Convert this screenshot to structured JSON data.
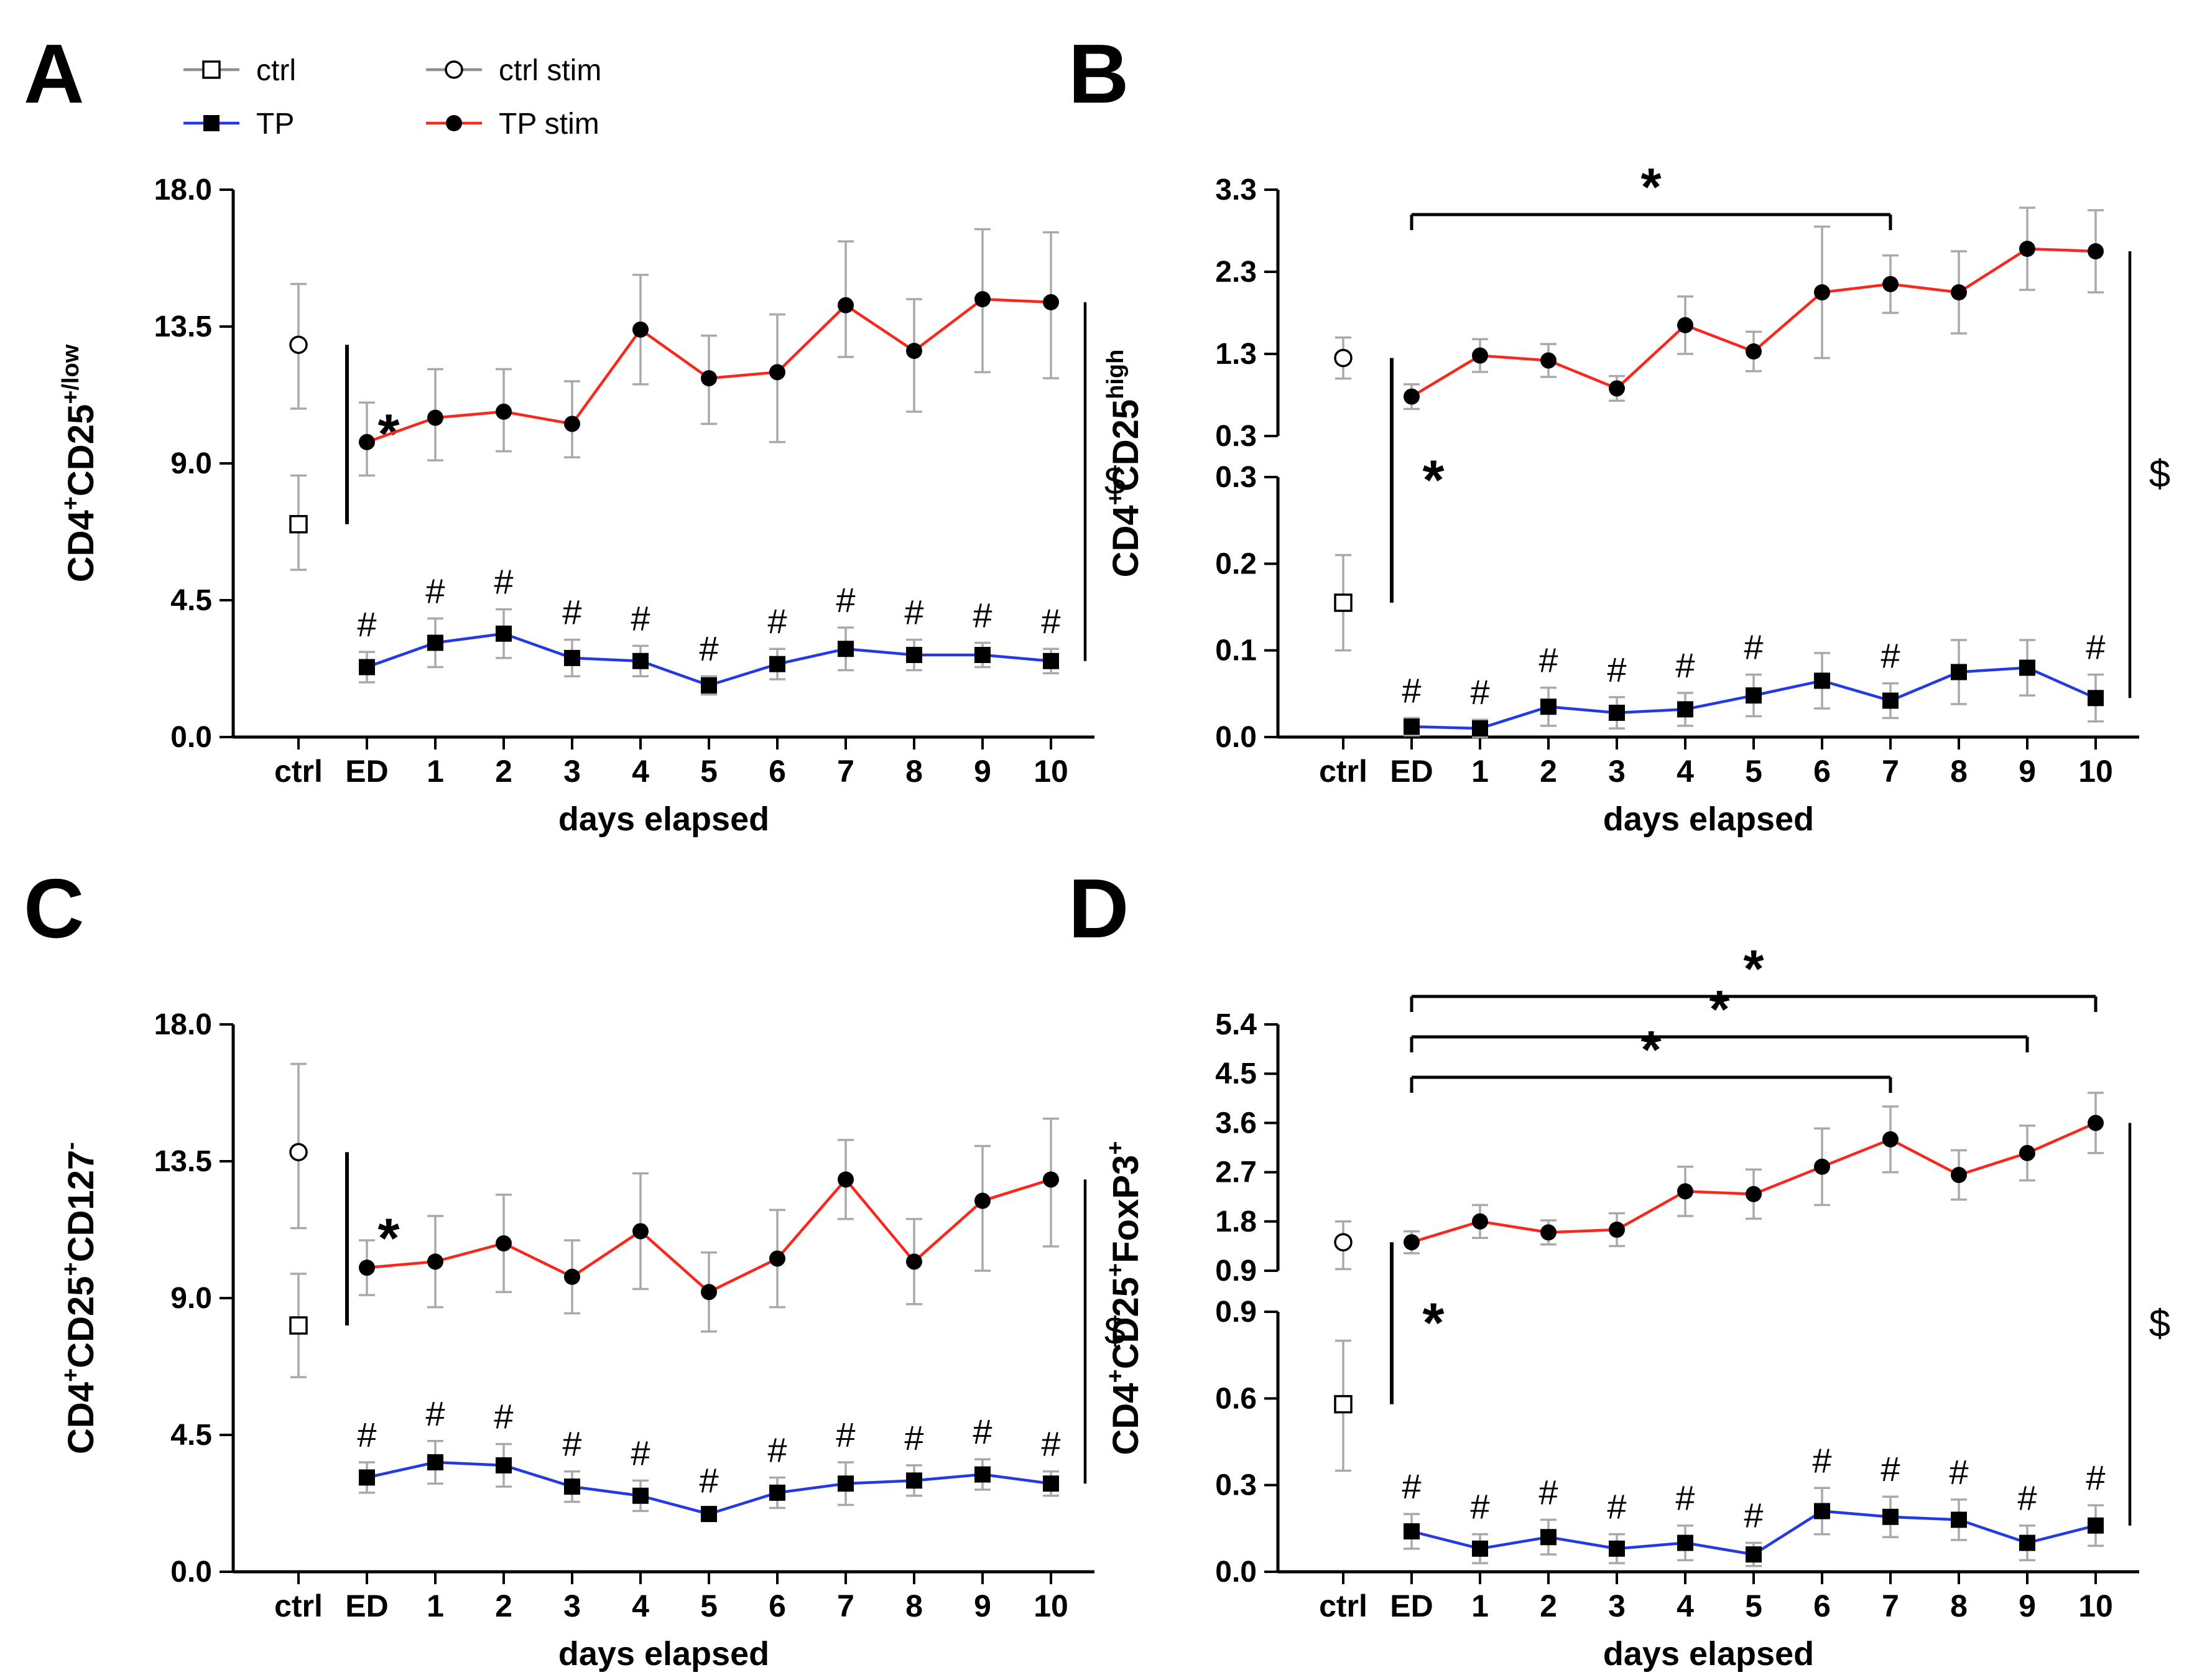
{
  "figure": {
    "background": "#ffffff"
  },
  "colors": {
    "tp_stim_line": "#f8281c",
    "tp_line": "#2239e3",
    "error_bar": "#a9a9a9",
    "marker": "#000000",
    "axis": "#000000",
    "legend_line": "#8f8f8f"
  },
  "legend": {
    "items": [
      {
        "label": "ctrl",
        "marker": "square-open",
        "line_color": "#8f8f8f"
      },
      {
        "label": "TP",
        "marker": "square-filled",
        "line_color": "#2239e3"
      },
      {
        "label": "ctrl stim",
        "marker": "circle-open",
        "line_color": "#8f8f8f"
      },
      {
        "label": "TP stim",
        "marker": "circle-filled",
        "line_color": "#f8281c"
      }
    ]
  },
  "x_categories": [
    "ctrl",
    "ED",
    "1",
    "2",
    "3",
    "4",
    "5",
    "6",
    "7",
    "8",
    "9",
    "10"
  ],
  "chart_data": [
    {
      "panel": "A",
      "type": "line",
      "ylabel_parts": [
        [
          "CD4",
          0
        ],
        [
          "+",
          1
        ],
        [
          "CD25",
          0
        ],
        [
          "+/low",
          1
        ]
      ],
      "xlabel": "days elapsed",
      "days": [
        "ED",
        "1",
        "2",
        "3",
        "4",
        "5",
        "6",
        "7",
        "8",
        "9",
        "10"
      ],
      "yaxis": {
        "type": "linear",
        "min": 0,
        "max": 18,
        "ticks": [
          [
            "0.0",
            0
          ],
          [
            "4.5",
            4.5
          ],
          [
            "9.0",
            9
          ],
          [
            "13.5",
            13.5
          ],
          [
            "18.0",
            18
          ]
        ]
      },
      "ctrl": {
        "label": "ctrl",
        "star": "*",
        "open": {
          "value": 7.0,
          "lo": 5.5,
          "hi": 8.6
        },
        "stim": {
          "value": 12.9,
          "lo": 10.8,
          "hi": 14.9
        }
      },
      "series": [
        {
          "name": "TP stim",
          "key": "tp_stim",
          "values": [
            9.7,
            10.5,
            10.7,
            10.3,
            13.4,
            11.8,
            12.0,
            14.2,
            12.7,
            14.4,
            14.3
          ],
          "hi": [
            11.0,
            12.1,
            12.1,
            11.7,
            15.2,
            13.2,
            13.9,
            16.3,
            14.4,
            16.7,
            16.6
          ],
          "lo": [
            8.6,
            9.1,
            9.4,
            9.2,
            11.6,
            10.3,
            9.7,
            12.5,
            10.7,
            12.0,
            11.8
          ]
        },
        {
          "name": "TP",
          "key": "tp",
          "values": [
            2.3,
            3.1,
            3.4,
            2.6,
            2.5,
            1.7,
            2.4,
            2.9,
            2.7,
            2.7,
            2.5
          ],
          "hi": [
            2.8,
            3.9,
            4.2,
            3.2,
            3.0,
            2.0,
            2.9,
            3.6,
            3.2,
            3.1,
            2.9
          ],
          "lo": [
            1.8,
            2.3,
            2.6,
            2.0,
            2.0,
            1.4,
            1.9,
            2.2,
            2.2,
            2.3,
            2.1
          ]
        }
      ],
      "hash_symbol": "#",
      "hash_indices": [
        0,
        1,
        2,
        3,
        4,
        5,
        6,
        7,
        8,
        9,
        10
      ],
      "brackets": [],
      "dollar": "$"
    },
    {
      "panel": "B",
      "type": "line",
      "ylabel_parts": [
        [
          "CD4",
          0
        ],
        [
          "+",
          1
        ],
        [
          "CD25",
          0
        ],
        [
          "high",
          1
        ]
      ],
      "xlabel": "days elapsed",
      "days": [
        "ED",
        "1",
        "2",
        "3",
        "4",
        "5",
        "6",
        "7",
        "8",
        "9",
        "10"
      ],
      "yaxis": {
        "type": "broken",
        "upper": {
          "min": 0.3,
          "max": 3.3,
          "ticks": [
            [
              "3.3",
              3.3
            ],
            [
              "2.3",
              2.3
            ],
            [
              "1.3",
              1.3
            ],
            [
              "0.3",
              0.3
            ]
          ]
        },
        "lower": {
          "max": 0.3,
          "ticks": [
            [
              "0.3",
              0.3
            ],
            [
              "0.2",
              0.2
            ],
            [
              "0.1",
              0.1
            ],
            [
              "0.0",
              0.0
            ]
          ]
        }
      },
      "ctrl": {
        "label": "ctrl",
        "star": "*",
        "open": {
          "value": 0.155,
          "lo": 0.1,
          "hi": 0.21
        },
        "stim": {
          "value": 1.25,
          "lo": 1.0,
          "hi": 1.5
        }
      },
      "series": [
        {
          "name": "TP stim",
          "key": "tp_stim",
          "values": [
            0.78,
            1.28,
            1.22,
            0.88,
            1.65,
            1.33,
            2.05,
            2.15,
            2.05,
            2.58,
            2.55
          ],
          "hi": [
            0.93,
            1.48,
            1.42,
            1.03,
            2.0,
            1.57,
            2.85,
            2.5,
            2.55,
            3.08,
            3.05
          ],
          "lo": [
            0.63,
            1.08,
            1.02,
            0.73,
            1.3,
            1.09,
            1.25,
            1.8,
            1.55,
            2.08,
            2.05
          ]
        },
        {
          "name": "TP",
          "key": "tp",
          "values": [
            0.012,
            0.01,
            0.035,
            0.028,
            0.032,
            0.048,
            0.065,
            0.042,
            0.075,
            0.08,
            0.045
          ],
          "hi": [
            0.022,
            0.02,
            0.057,
            0.046,
            0.051,
            0.072,
            0.097,
            0.062,
            0.112,
            0.112,
            0.072
          ],
          "lo": [
            0.002,
            0.0,
            0.013,
            0.01,
            0.013,
            0.024,
            0.033,
            0.022,
            0.038,
            0.048,
            0.018
          ]
        }
      ],
      "hash_symbol": "#",
      "hash_indices": [
        0,
        1,
        2,
        3,
        4,
        5,
        7,
        10
      ],
      "brackets": [
        {
          "from": 0,
          "to": 7,
          "label": "*"
        }
      ],
      "dollar": "$"
    },
    {
      "panel": "C",
      "type": "line",
      "ylabel_parts": [
        [
          "CD4",
          0
        ],
        [
          "+",
          1
        ],
        [
          "CD25",
          0
        ],
        [
          "+",
          1
        ],
        [
          "CD127",
          0
        ],
        [
          "-",
          1
        ]
      ],
      "xlabel": "days elapsed",
      "days": [
        "ED",
        "1",
        "2",
        "3",
        "4",
        "5",
        "6",
        "7",
        "8",
        "9",
        "10"
      ],
      "yaxis": {
        "type": "linear",
        "min": 0,
        "max": 18,
        "ticks": [
          [
            "0.0",
            0
          ],
          [
            "4.5",
            4.5
          ],
          [
            "9.0",
            9
          ],
          [
            "13.5",
            13.5
          ],
          [
            "18.0",
            18
          ]
        ]
      },
      "ctrl": {
        "label": "ctrl",
        "star": "*",
        "open": {
          "value": 8.1,
          "lo": 6.4,
          "hi": 9.8
        },
        "stim": {
          "value": 13.8,
          "lo": 11.3,
          "hi": 16.7
        }
      },
      "series": [
        {
          "name": "TP stim",
          "key": "tp_stim",
          "values": [
            10.0,
            10.2,
            10.8,
            9.7,
            11.2,
            9.2,
            10.3,
            12.9,
            10.2,
            12.2,
            12.9
          ],
          "hi": [
            10.9,
            11.7,
            12.4,
            10.9,
            13.1,
            10.5,
            11.9,
            14.2,
            11.6,
            14.0,
            14.9
          ],
          "lo": [
            9.1,
            8.7,
            9.2,
            8.5,
            9.3,
            7.9,
            8.7,
            11.6,
            8.8,
            9.9,
            10.7
          ]
        },
        {
          "name": "TP",
          "key": "tp",
          "values": [
            3.1,
            3.6,
            3.5,
            2.8,
            2.5,
            1.9,
            2.6,
            2.9,
            3.0,
            3.2,
            2.9
          ],
          "hi": [
            3.6,
            4.3,
            4.2,
            3.3,
            3.0,
            2.1,
            3.1,
            3.6,
            3.5,
            3.7,
            3.3
          ],
          "lo": [
            2.6,
            2.9,
            2.8,
            2.3,
            2.0,
            1.7,
            2.1,
            2.2,
            2.5,
            2.7,
            2.5
          ]
        }
      ],
      "hash_symbol": "#",
      "hash_indices": [
        0,
        1,
        2,
        3,
        4,
        5,
        6,
        7,
        8,
        9,
        10
      ],
      "brackets": [],
      "dollar": "$"
    },
    {
      "panel": "D",
      "type": "line",
      "ylabel_parts": [
        [
          "CD4",
          0
        ],
        [
          "+",
          1
        ],
        [
          "CD25",
          0
        ],
        [
          "+",
          1
        ],
        [
          "FoxP3",
          0
        ],
        [
          "+",
          1
        ]
      ],
      "xlabel": "days elapsed",
      "days": [
        "ED",
        "1",
        "2",
        "3",
        "4",
        "5",
        "6",
        "7",
        "8",
        "9",
        "10"
      ],
      "yaxis": {
        "type": "broken",
        "upper": {
          "min": 0.9,
          "max": 5.4,
          "ticks": [
            [
              "5.4",
              5.4
            ],
            [
              "4.5",
              4.5
            ],
            [
              "3.6",
              3.6
            ],
            [
              "2.7",
              2.7
            ],
            [
              "1.8",
              1.8
            ],
            [
              "0.9",
              0.9
            ]
          ]
        },
        "lower": {
          "max": 0.9,
          "ticks": [
            [
              "0.9",
              0.9
            ],
            [
              "0.6",
              0.6
            ],
            [
              "0.3",
              0.3
            ],
            [
              "0.0",
              0.0
            ]
          ]
        }
      },
      "ctrl": {
        "label": "ctrl",
        "star": "*",
        "open": {
          "value": 0.58,
          "lo": 0.35,
          "hi": 0.8
        },
        "stim": {
          "value": 1.42,
          "lo": 0.93,
          "hi": 1.8
        }
      },
      "series": [
        {
          "name": "TP stim",
          "key": "tp_stim",
          "values": [
            1.42,
            1.8,
            1.6,
            1.65,
            2.35,
            2.3,
            2.8,
            3.3,
            2.65,
            3.05,
            3.6
          ],
          "hi": [
            1.62,
            2.1,
            1.82,
            1.95,
            2.8,
            2.75,
            3.5,
            3.9,
            3.1,
            3.55,
            4.15
          ],
          "lo": [
            1.22,
            1.5,
            1.38,
            1.35,
            1.9,
            1.85,
            2.1,
            2.7,
            2.2,
            2.55,
            3.05
          ]
        },
        {
          "name": "TP",
          "key": "tp",
          "values": [
            0.14,
            0.08,
            0.12,
            0.08,
            0.1,
            0.06,
            0.21,
            0.19,
            0.18,
            0.1,
            0.16
          ],
          "hi": [
            0.2,
            0.13,
            0.18,
            0.13,
            0.16,
            0.1,
            0.29,
            0.26,
            0.25,
            0.16,
            0.23
          ],
          "lo": [
            0.08,
            0.03,
            0.06,
            0.03,
            0.04,
            0.02,
            0.13,
            0.12,
            0.11,
            0.04,
            0.09
          ]
        }
      ],
      "hash_symbol": "#",
      "hash_indices": [
        0,
        1,
        2,
        3,
        4,
        5,
        6,
        7,
        8,
        9,
        10
      ],
      "brackets": [
        {
          "from": 0,
          "to": 7,
          "label": "*"
        },
        {
          "from": 0,
          "to": 9,
          "label": "*"
        },
        {
          "from": 0,
          "to": 10,
          "label": "*"
        }
      ],
      "dollar": "$"
    }
  ]
}
